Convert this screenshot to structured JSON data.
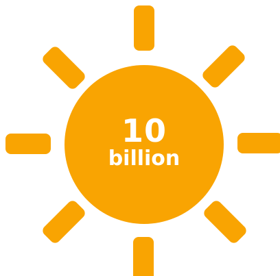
{
  "sun": {
    "number": "10",
    "unit": "billion",
    "color": "#F9A402",
    "text_color": "#FFFFFF"
  }
}
